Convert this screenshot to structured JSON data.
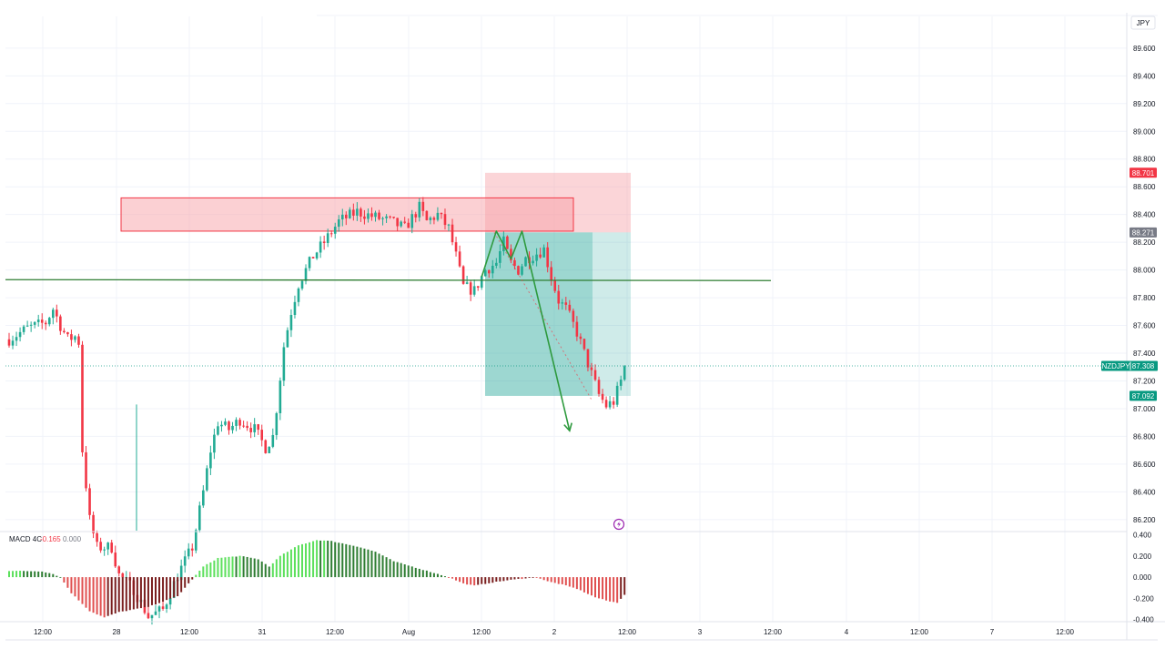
{
  "currency": "JPY",
  "symbol": "NZDJPY",
  "colors": {
    "up": "#26a69a",
    "down": "#ef5350",
    "candle_up": "#22ab94",
    "candle_down": "#f23645",
    "hist_up_strong": "#5ce05c",
    "hist_down": "#e05050",
    "profit_zone": "#26a69a",
    "stop_zone": "#f7a1a8",
    "supply_box": "#f7a1a8",
    "support_line": "#2e7d32",
    "path": "#2e9a3e",
    "grid": "#f0f3fa",
    "stop_label": "#f23645",
    "entry_label": "#787b86",
    "target_label": "#089981",
    "price_label": "#089981",
    "macd_value": "#f23645",
    "alert_icon": "#9c27b0"
  },
  "price_labels": {
    "stop": "88.701",
    "entry": "88.271",
    "target": "87.092",
    "last": "87.308"
  },
  "macd": {
    "title": "MACD 4C",
    "value": "-0.165",
    "zero": "0.000"
  },
  "alert_icon": "lightning-icon",
  "chart_data": {
    "type": "candlestick",
    "symbol": "NZDJPY",
    "currency": "JPY",
    "y_ticks": [
      "89.600",
      "89.400",
      "89.200",
      "89.000",
      "88.800",
      "88.600",
      "88.400",
      "88.200",
      "88.000",
      "87.800",
      "87.600",
      "87.400",
      "87.200",
      "87.000",
      "86.800",
      "86.600",
      "86.400",
      "86.200"
    ],
    "y_tick_values": [
      89.6,
      89.4,
      89.2,
      89.0,
      88.8,
      88.6,
      88.4,
      88.2,
      88.0,
      87.8,
      87.6,
      87.4,
      87.2,
      87.0,
      86.8,
      86.6,
      86.4,
      86.2
    ],
    "ylim": [
      86.12,
      89.75
    ],
    "x_ticks": [
      "12:00",
      "28",
      "12:00",
      "31",
      "12:00",
      "Aug",
      "12:00",
      "2",
      "12:00",
      "3",
      "12:00",
      "4",
      "12:00",
      "7",
      "12:00"
    ],
    "bar_count": 210,
    "shown_bars": 169,
    "close_segments": [
      [
        0,
        87.5
      ],
      [
        5,
        87.58
      ],
      [
        10,
        87.62
      ],
      [
        12,
        87.72
      ],
      [
        14,
        87.6
      ],
      [
        16,
        87.5
      ],
      [
        18,
        87.52
      ],
      [
        19,
        87.48
      ],
      [
        20,
        86.7
      ],
      [
        22,
        86.2
      ],
      [
        24,
        86.0
      ],
      [
        26,
        86.0
      ],
      [
        28,
        86.0
      ],
      [
        30,
        85.8
      ],
      [
        34,
        85.7
      ],
      [
        38,
        85.5
      ],
      [
        42,
        85.55
      ],
      [
        46,
        85.8
      ],
      [
        50,
        86.0
      ],
      [
        53,
        86.4
      ],
      [
        55,
        86.7
      ],
      [
        57,
        86.9
      ],
      [
        60,
        86.85
      ],
      [
        63,
        86.92
      ],
      [
        67,
        86.85
      ],
      [
        70,
        86.72
      ],
      [
        72,
        86.8
      ],
      [
        73,
        87.0
      ],
      [
        75,
        87.45
      ],
      [
        77,
        87.7
      ],
      [
        79,
        87.9
      ],
      [
        83,
        88.1
      ],
      [
        86,
        88.2
      ],
      [
        90,
        88.35
      ],
      [
        95,
        88.42
      ],
      [
        100,
        88.38
      ],
      [
        104,
        88.35
      ],
      [
        108,
        88.3
      ],
      [
        112,
        88.45
      ],
      [
        114,
        88.35
      ],
      [
        117,
        88.4
      ],
      [
        120,
        88.3
      ],
      [
        122,
        88.1
      ],
      [
        124,
        87.88
      ],
      [
        127,
        87.85
      ],
      [
        130,
        88.0
      ],
      [
        133,
        88.05
      ],
      [
        135,
        88.2
      ],
      [
        137,
        88.05
      ],
      [
        139,
        88.0
      ],
      [
        141,
        88.08
      ],
      [
        144,
        88.12
      ],
      [
        146,
        88.15
      ],
      [
        148,
        87.95
      ],
      [
        150,
        87.78
      ],
      [
        152,
        87.72
      ],
      [
        155,
        87.55
      ],
      [
        157,
        87.4
      ],
      [
        159,
        87.25
      ],
      [
        161,
        87.1
      ],
      [
        163,
        87.02
      ],
      [
        165,
        87.05
      ],
      [
        167,
        87.2
      ],
      [
        168,
        87.3
      ]
    ],
    "supply_zone": [
      88.28,
      88.52
    ],
    "support_level": 87.93,
    "short_position": {
      "entry": 88.271,
      "stop": 88.701,
      "target": 87.092
    },
    "zigzag_path": [
      [
        129,
        87.95
      ],
      [
        133,
        88.28
      ],
      [
        137,
        88.08
      ],
      [
        140,
        88.28
      ],
      [
        153,
        86.84
      ]
    ],
    "macd": {
      "title": "MACD 4C",
      "last": -0.165,
      "ylim": [
        -0.42,
        0.43
      ],
      "y_ticks": [
        "0.400",
        "0.200",
        "0.000",
        "-0.200",
        "-0.400"
      ],
      "y_tick_values": [
        0.4,
        0.2,
        0.0,
        -0.2,
        -0.4
      ],
      "hist_segments": [
        [
          0,
          0.06
        ],
        [
          9,
          0.055
        ],
        [
          12,
          0.03
        ],
        [
          14,
          0.0
        ],
        [
          17,
          -0.15
        ],
        [
          22,
          -0.32
        ],
        [
          26,
          -0.38
        ],
        [
          30,
          -0.33
        ],
        [
          38,
          -0.28
        ],
        [
          46,
          -0.18
        ],
        [
          50,
          -0.02
        ],
        [
          53,
          0.1
        ],
        [
          57,
          0.18
        ],
        [
          63,
          0.2
        ],
        [
          68,
          0.17
        ],
        [
          71,
          0.1
        ],
        [
          74,
          0.2
        ],
        [
          79,
          0.3
        ],
        [
          84,
          0.35
        ],
        [
          88,
          0.34
        ],
        [
          95,
          0.29
        ],
        [
          100,
          0.24
        ],
        [
          105,
          0.15
        ],
        [
          110,
          0.1
        ],
        [
          115,
          0.05
        ],
        [
          120,
          0.0
        ],
        [
          124,
          -0.06
        ],
        [
          127,
          -0.08
        ],
        [
          132,
          -0.05
        ],
        [
          136,
          -0.03
        ],
        [
          141,
          -0.01
        ],
        [
          144,
          0.0
        ],
        [
          147,
          -0.04
        ],
        [
          151,
          -0.07
        ],
        [
          155,
          -0.11
        ],
        [
          160,
          -0.19
        ],
        [
          164,
          -0.23
        ],
        [
          166,
          -0.24
        ],
        [
          168,
          -0.165
        ]
      ]
    }
  }
}
